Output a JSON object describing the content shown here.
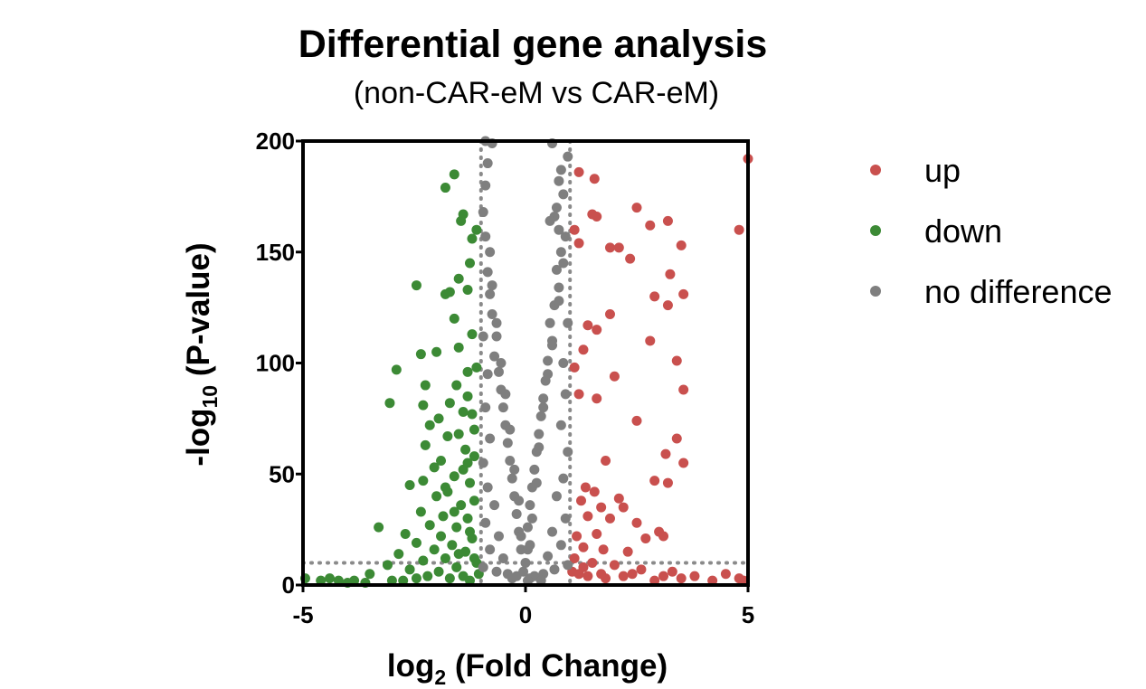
{
  "chart_data": {
    "type": "scatter",
    "title": "Differential gene analysis",
    "subtitle": "(non-CAR-eM vs CAR-eM)",
    "xlabel": {
      "main": "log",
      "sub": "2",
      "rest": " (Fold Change)"
    },
    "ylabel": {
      "main": "-log",
      "sub": "10",
      "rest": " (P-value)"
    },
    "xlim": [
      -5,
      5
    ],
    "ylim": [
      0,
      200
    ],
    "x_ticks": [
      {
        "value": -5,
        "label": "-5"
      },
      {
        "value": 0,
        "label": "0"
      },
      {
        "value": 5,
        "label": "5"
      }
    ],
    "y_ticks": [
      {
        "value": 0,
        "label": "0"
      },
      {
        "value": 50,
        "label": "50"
      },
      {
        "value": 100,
        "label": "100"
      },
      {
        "value": 150,
        "label": "150"
      },
      {
        "value": 200,
        "label": "200"
      }
    ],
    "thresholds": {
      "x": [
        -1,
        1
      ],
      "y": 10
    },
    "grid": false,
    "legend_position": "right",
    "series": [
      {
        "name": "up",
        "color": "#c9504e",
        "points": [
          [
            5.0,
            192
          ],
          [
            4.8,
            160
          ],
          [
            3.5,
            153
          ],
          [
            3.2,
            164
          ],
          [
            2.8,
            162
          ],
          [
            2.5,
            170
          ],
          [
            2.1,
            152
          ],
          [
            1.9,
            152
          ],
          [
            2.35,
            147
          ],
          [
            1.6,
            166
          ],
          [
            1.5,
            167
          ],
          [
            1.2,
            186
          ],
          [
            1.55,
            183
          ],
          [
            1.1,
            160
          ],
          [
            1.2,
            154
          ],
          [
            3.25,
            140
          ],
          [
            3.55,
            131
          ],
          [
            3.2,
            126
          ],
          [
            2.8,
            110
          ],
          [
            2.9,
            130
          ],
          [
            1.9,
            122
          ],
          [
            2.0,
            94
          ],
          [
            1.6,
            115
          ],
          [
            1.4,
            117
          ],
          [
            1.3,
            106
          ],
          [
            1.1,
            98
          ],
          [
            3.4,
            101
          ],
          [
            3.55,
            88
          ],
          [
            1.2,
            86
          ],
          [
            1.6,
            84
          ],
          [
            2.5,
            74
          ],
          [
            3.4,
            66
          ],
          [
            3.55,
            55
          ],
          [
            3.15,
            59
          ],
          [
            1.8,
            56
          ],
          [
            2.9,
            47
          ],
          [
            3.2,
            46
          ],
          [
            1.35,
            44
          ],
          [
            1.55,
            42
          ],
          [
            2.1,
            39
          ],
          [
            1.25,
            38
          ],
          [
            1.7,
            35
          ],
          [
            2.2,
            35
          ],
          [
            1.4,
            31
          ],
          [
            1.9,
            30
          ],
          [
            2.5,
            28
          ],
          [
            3.0,
            24
          ],
          [
            1.15,
            22
          ],
          [
            1.6,
            23
          ],
          [
            2.7,
            21
          ],
          [
            3.1,
            22
          ],
          [
            1.3,
            17
          ],
          [
            1.75,
            16
          ],
          [
            2.3,
            15
          ],
          [
            1.1,
            12
          ],
          [
            1.5,
            10
          ],
          [
            2.0,
            9
          ],
          [
            2.6,
            7
          ],
          [
            3.3,
            6
          ],
          [
            3.8,
            4
          ],
          [
            4.8,
            3
          ],
          [
            4.5,
            5
          ],
          [
            1.2,
            5
          ],
          [
            1.4,
            4
          ],
          [
            1.8,
            3
          ],
          [
            2.2,
            4
          ],
          [
            2.9,
            2
          ],
          [
            3.5,
            3
          ],
          [
            4.2,
            2
          ],
          [
            4.9,
            2
          ],
          [
            1.05,
            6
          ],
          [
            1.3,
            8
          ],
          [
            1.7,
            5
          ],
          [
            2.4,
            5
          ],
          [
            3.1,
            4
          ]
        ]
      },
      {
        "name": "down",
        "color": "#3c8a35",
        "points": [
          [
            -1.6,
            185
          ],
          [
            -1.8,
            179
          ],
          [
            -1.4,
            167
          ],
          [
            -1.45,
            164
          ],
          [
            -1.2,
            156
          ],
          [
            -1.1,
            160
          ],
          [
            -1.25,
            145
          ],
          [
            -1.3,
            133
          ],
          [
            -1.5,
            138
          ],
          [
            -1.8,
            131
          ],
          [
            -1.7,
            132
          ],
          [
            -2.45,
            135
          ],
          [
            -1.6,
            120
          ],
          [
            -2.0,
            105
          ],
          [
            -1.5,
            107
          ],
          [
            -1.2,
            113
          ],
          [
            -2.35,
            104
          ],
          [
            -2.9,
            97
          ],
          [
            -1.3,
            96
          ],
          [
            -1.1,
            98
          ],
          [
            -1.55,
            90
          ],
          [
            -1.3,
            85
          ],
          [
            -2.25,
            90
          ],
          [
            -2.3,
            81
          ],
          [
            -3.05,
            82
          ],
          [
            -1.7,
            82
          ],
          [
            -1.4,
            78
          ],
          [
            -1.2,
            77
          ],
          [
            -1.95,
            75
          ],
          [
            -2.15,
            72
          ],
          [
            -1.15,
            70
          ],
          [
            -1.5,
            68
          ],
          [
            -1.75,
            67
          ],
          [
            -2.25,
            63
          ],
          [
            -1.35,
            61
          ],
          [
            -1.15,
            58
          ],
          [
            -1.9,
            56
          ],
          [
            -2.05,
            53
          ],
          [
            -1.4,
            52
          ],
          [
            -1.6,
            49
          ],
          [
            -2.3,
            47
          ],
          [
            -1.25,
            46
          ],
          [
            -2.6,
            45
          ],
          [
            -1.75,
            42
          ],
          [
            -2.0,
            40
          ],
          [
            -1.15,
            38
          ],
          [
            -1.45,
            36
          ],
          [
            -2.35,
            33
          ],
          [
            -1.85,
            31
          ],
          [
            -1.3,
            30
          ],
          [
            -2.15,
            27
          ],
          [
            -1.55,
            26
          ],
          [
            -3.3,
            26
          ],
          [
            -2.7,
            23
          ],
          [
            -1.9,
            22
          ],
          [
            -1.2,
            21
          ],
          [
            -2.45,
            19
          ],
          [
            -1.65,
            18
          ],
          [
            -2.05,
            16
          ],
          [
            -1.35,
            15
          ],
          [
            -2.85,
            14
          ],
          [
            -1.8,
            12
          ],
          [
            -2.3,
            11
          ],
          [
            -1.1,
            10
          ],
          [
            -3.1,
            9
          ],
          [
            -1.55,
            8
          ],
          [
            -2.6,
            7
          ],
          [
            -1.95,
            6
          ],
          [
            -3.5,
            5
          ],
          [
            -2.2,
            4
          ],
          [
            -1.4,
            4
          ],
          [
            -4.95,
            3
          ],
          [
            -4.6,
            2
          ],
          [
            -4.4,
            3
          ],
          [
            -4.2,
            2
          ],
          [
            -4.0,
            1
          ],
          [
            -3.6,
            1
          ],
          [
            -3.0,
            2
          ],
          [
            -2.75,
            2
          ],
          [
            -1.25,
            2
          ],
          [
            -1.7,
            3
          ],
          [
            -2.45,
            3
          ],
          [
            -3.85,
            2
          ],
          [
            -1.05,
            5
          ],
          [
            -1.15,
            12
          ],
          [
            -1.5,
            14
          ],
          [
            -1.25,
            24
          ],
          [
            -1.6,
            33
          ],
          [
            -1.8,
            44
          ],
          [
            -1.3,
            55
          ]
        ]
      },
      {
        "name": "no difference",
        "color": "#7f7f7f",
        "points": [
          [
            -0.9,
            200
          ],
          [
            -0.75,
            199
          ],
          [
            0.6,
            199
          ],
          [
            0.95,
            193
          ],
          [
            0.8,
            187
          ],
          [
            0.75,
            182
          ],
          [
            0.85,
            176
          ],
          [
            0.7,
            170
          ],
          [
            0.65,
            166
          ],
          [
            0.55,
            164
          ],
          [
            0.75,
            160
          ],
          [
            0.9,
            157
          ],
          [
            0.8,
            150
          ],
          [
            -0.95,
            168
          ],
          [
            -0.9,
            157
          ],
          [
            -0.8,
            150
          ],
          [
            -0.85,
            141
          ],
          [
            -0.8,
            131
          ],
          [
            -0.75,
            122
          ],
          [
            -0.65,
            112
          ],
          [
            -0.7,
            103
          ],
          [
            -0.6,
            96
          ],
          [
            -0.55,
            88
          ],
          [
            -0.5,
            80
          ],
          [
            -0.45,
            72
          ],
          [
            -0.4,
            64
          ],
          [
            -0.35,
            56
          ],
          [
            -0.3,
            48
          ],
          [
            -0.25,
            40
          ],
          [
            -0.2,
            32
          ],
          [
            -0.15,
            24
          ],
          [
            -0.1,
            16
          ],
          [
            0.7,
            142
          ],
          [
            0.75,
            134
          ],
          [
            0.65,
            126
          ],
          [
            0.55,
            118
          ],
          [
            0.6,
            110
          ],
          [
            0.5,
            101
          ],
          [
            0.45,
            92
          ],
          [
            0.4,
            84
          ],
          [
            0.35,
            76
          ],
          [
            0.3,
            68
          ],
          [
            0.25,
            60
          ],
          [
            0.2,
            52
          ],
          [
            0.15,
            44
          ],
          [
            0.1,
            36
          ],
          [
            0.05,
            26
          ],
          [
            0.05,
            16
          ],
          [
            -0.95,
            112
          ],
          [
            -0.85,
            95
          ],
          [
            -0.9,
            80
          ],
          [
            -0.8,
            66
          ],
          [
            -0.95,
            55
          ],
          [
            -0.85,
            44
          ],
          [
            -0.7,
            36
          ],
          [
            -0.9,
            28
          ],
          [
            -0.6,
            22
          ],
          [
            -0.8,
            16
          ],
          [
            -0.5,
            12
          ],
          [
            -0.95,
            8
          ],
          [
            -0.65,
            6
          ],
          [
            -0.4,
            5
          ],
          [
            -0.2,
            4
          ],
          [
            0.95,
            118
          ],
          [
            0.85,
            100
          ],
          [
            0.9,
            86
          ],
          [
            0.8,
            72
          ],
          [
            0.95,
            60
          ],
          [
            0.85,
            48
          ],
          [
            0.7,
            40
          ],
          [
            0.9,
            30
          ],
          [
            0.6,
            24
          ],
          [
            0.8,
            18
          ],
          [
            0.5,
            13
          ],
          [
            0.95,
            9
          ],
          [
            0.65,
            7
          ],
          [
            0.4,
            5
          ],
          [
            0.2,
            4
          ],
          [
            0.1,
            3
          ],
          [
            -0.85,
            190
          ],
          [
            -0.9,
            180
          ],
          [
            0.85,
            145
          ],
          [
            -0.75,
            135
          ],
          [
            0.75,
            128
          ],
          [
            -0.65,
            118
          ],
          [
            0.6,
            108
          ],
          [
            -0.55,
            100
          ],
          [
            0.5,
            95
          ],
          [
            -0.45,
            86
          ],
          [
            0.4,
            80
          ],
          [
            -0.35,
            70
          ],
          [
            0.3,
            62
          ],
          [
            -0.25,
            52
          ],
          [
            0.25,
            46
          ],
          [
            -0.15,
            38
          ],
          [
            0.15,
            30
          ],
          [
            -0.1,
            22
          ],
          [
            0.1,
            18
          ],
          [
            0.0,
            10
          ],
          [
            -0.05,
            6
          ],
          [
            0.05,
            2
          ],
          [
            -0.3,
            3
          ],
          [
            0.35,
            2
          ]
        ]
      }
    ]
  }
}
